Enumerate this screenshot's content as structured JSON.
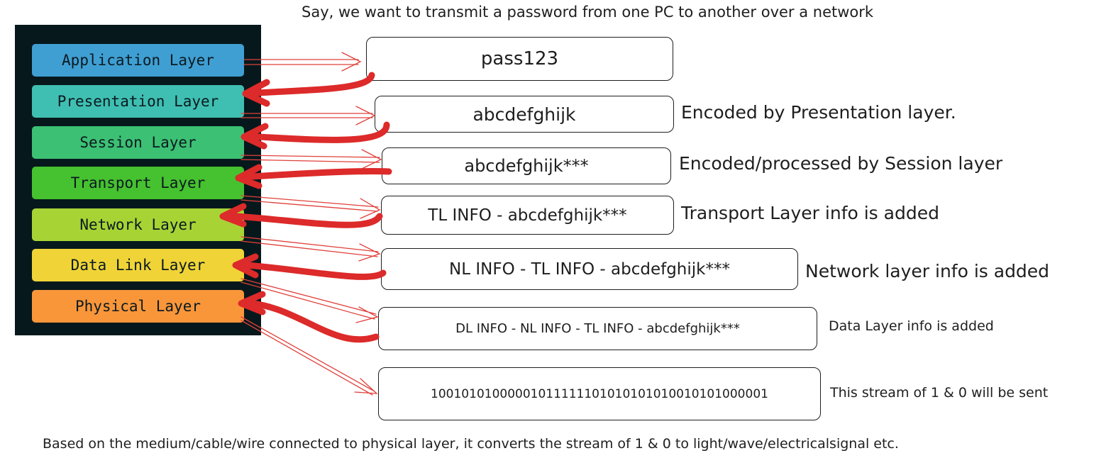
{
  "title": "Say, we want to transmit a password from one PC to another over a network",
  "footer": "Based on the medium/cable/wire connected to physical layer, it converts the stream of 1 & 0 to light/wave/electricalsignal etc.",
  "layers": [
    {
      "label": "Application Layer",
      "color": "#3f9fd3"
    },
    {
      "label": "Presentation Layer",
      "color": "#3fbfb2"
    },
    {
      "label": "Session Layer",
      "color": "#3cc073"
    },
    {
      "label": "Transport Layer",
      "color": "#46c12f"
    },
    {
      "label": "Network Layer",
      "color": "#a8d335"
    },
    {
      "label": "Data Link Layer",
      "color": "#f0d437"
    },
    {
      "label": "Physical Layer",
      "color": "#f9963a"
    }
  ],
  "steps": [
    {
      "box": "pass123",
      "note": ""
    },
    {
      "box": "abcdefghijk",
      "note": "Encoded by Presentation layer."
    },
    {
      "box": "abcdefghijk***",
      "note": "Encoded/processed by Session layer"
    },
    {
      "box": "TL INFO - abcdefghijk***",
      "note": "Transport Layer info is added"
    },
    {
      "box": "NL INFO - TL INFO - abcdefghijk***",
      "note": "Network layer info is added"
    },
    {
      "box": "DL INFO - NL INFO - TL INFO - abcdefghijk***",
      "note": "Data Layer info is added"
    },
    {
      "box": "10010101000001011111101010101010010101000001",
      "note": "This stream of 1 & 0 will be sent"
    }
  ],
  "colors": {
    "panel": "#06181c",
    "thin_arrow": "#e0403a",
    "thick_arrow": "#dd2a2a"
  }
}
